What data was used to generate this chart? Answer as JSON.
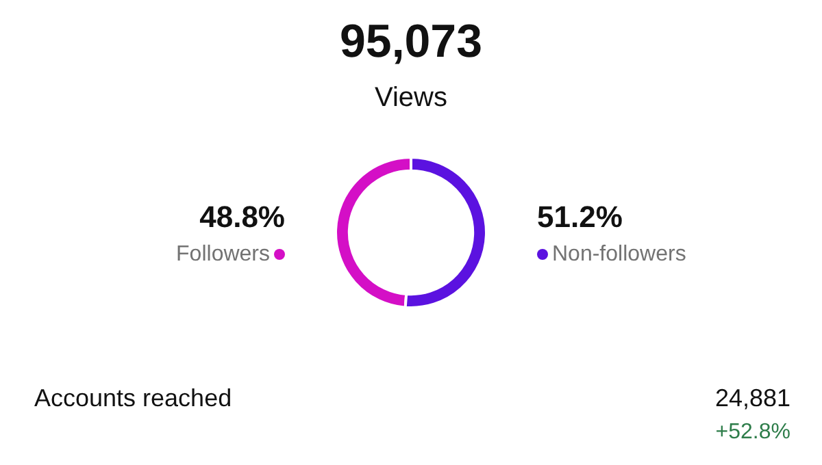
{
  "chart_data": {
    "type": "donut",
    "title": "95,073",
    "subtitle": "Views",
    "categories": [
      "Followers",
      "Non-followers"
    ],
    "values": [
      48.8,
      51.2
    ],
    "value_labels": [
      "48.8%",
      "51.2%"
    ],
    "colors": [
      "#d40fc6",
      "#5b12e0"
    ],
    "annotations": [
      "Accounts reached",
      "24,881",
      "+52.8%"
    ]
  }
}
